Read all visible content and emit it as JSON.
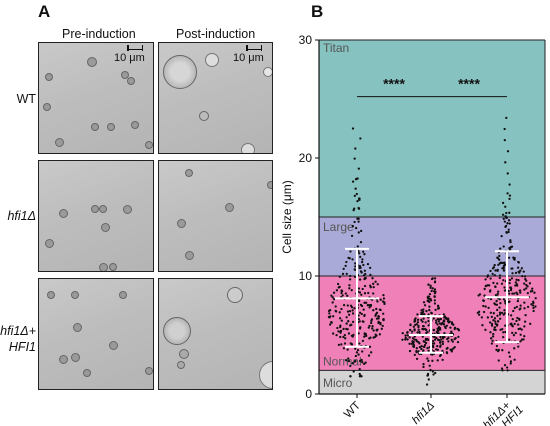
{
  "panel_a": {
    "letter": "A",
    "columns": [
      "Pre-induction",
      "Post-induction"
    ],
    "rows": [
      {
        "label": "WT",
        "label_line2": ""
      },
      {
        "label": "hfi1Δ",
        "label_line2": ""
      },
      {
        "label": "hfi1Δ+",
        "label_line2": "HFI1"
      }
    ],
    "scale_bar_label": "10 μm"
  },
  "panel_b": {
    "letter": "B",
    "chart_data": {
      "type": "scatter",
      "ylabel": "Cell size (μm)",
      "xlabel": "",
      "ylim": [
        0,
        30
      ],
      "yticks": [
        0,
        10,
        20,
        30
      ],
      "categories": [
        "WT",
        "hfi1Δ",
        "hfi1Δ+ HFI1"
      ],
      "category_lines": [
        [
          "WT"
        ],
        [
          "hfi1Δ"
        ],
        [
          "hfi1Δ+",
          "HFI1"
        ]
      ],
      "size_bands": [
        {
          "name": "Micro",
          "from": 0,
          "to": 2,
          "color": "#d4d4d4"
        },
        {
          "name": "Normal",
          "from": 2,
          "to": 10,
          "color": "#f080b8"
        },
        {
          "name": "Large",
          "from": 10,
          "to": 15,
          "color": "#aaaad8"
        },
        {
          "name": "Titan",
          "from": 15,
          "to": 30,
          "color": "#86c2c0"
        }
      ],
      "series": [
        {
          "mean": 8.1,
          "sd_low": 4.0,
          "sd_high": 12.3,
          "min": 1.5,
          "max": 22.5,
          "median_core": 7.0,
          "spread": 2.6
        },
        {
          "mean": 5.0,
          "sd_low": 3.5,
          "sd_high": 6.6,
          "min": 0.8,
          "max": 9.8,
          "median_core": 4.9,
          "spread": 1.4
        },
        {
          "mean": 8.2,
          "sd_low": 4.4,
          "sd_high": 12.1,
          "min": 2.0,
          "max": 23.4,
          "median_core": 7.5,
          "spread": 2.5
        }
      ],
      "significance": [
        {
          "from": 0,
          "to": 1,
          "label": "****",
          "y": 25.2
        },
        {
          "from": 1,
          "to": 2,
          "label": "****",
          "y": 25.2
        }
      ]
    }
  }
}
